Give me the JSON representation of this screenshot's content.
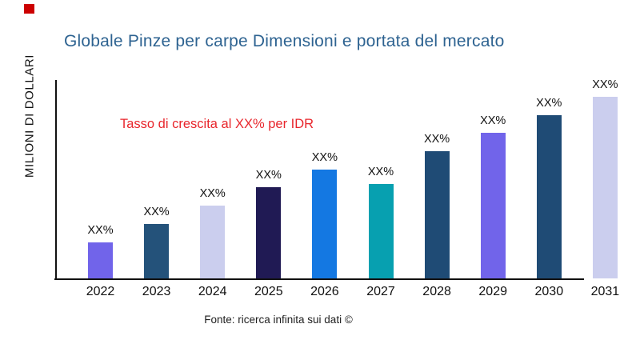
{
  "decorations": {
    "corner_marker_color": "#cc0000"
  },
  "header": {
    "title": "Globale Pinze per carpe Dimensioni e portata del mercato",
    "title_color": "#2e6391"
  },
  "annotation": {
    "text": "Tasso di crescita al XX% per IDR",
    "color": "#e8262c"
  },
  "footer": {
    "source": "Fonte: ricerca infinita sui dati ©"
  },
  "chart_data": {
    "type": "bar",
    "title": "Globale Pinze per carpe Dimensioni e portata del mercato",
    "xlabel": "",
    "ylabel": "MILIONI DI DOLLARI",
    "categories": [
      "2022",
      "2023",
      "2024",
      "2025",
      "2026",
      "2027",
      "2028",
      "2029",
      "2030",
      "2031"
    ],
    "values_relative": [
      20,
      30,
      40,
      50,
      60,
      52,
      70,
      80,
      90,
      100
    ],
    "bar_labels": [
      "XX%",
      "XX%",
      "XX%",
      "XX%",
      "XX%",
      "XX%",
      "XX%",
      "XX%",
      "XX%",
      "XX%"
    ],
    "bar_colors": [
      "#7164ea",
      "#24527a",
      "#cbceee",
      "#201a54",
      "#1478e2",
      "#07a0b0",
      "#1f4b75",
      "#7164ea",
      "#1f4b75",
      "#cbceee"
    ],
    "ylim": [
      0,
      100
    ],
    "grid": false,
    "legend": "none",
    "axis_color": "#111111"
  }
}
